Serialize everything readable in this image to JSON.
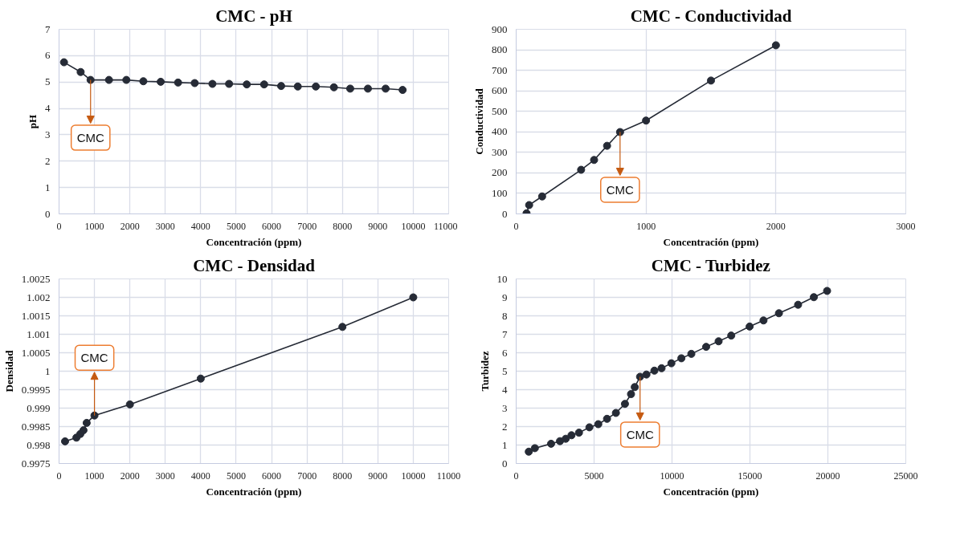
{
  "chart_data": [
    {
      "type": "line",
      "title": "CMC - pH",
      "xlabel": "Concentración (ppm)",
      "ylabel": "pH",
      "x": [
        140,
        610,
        890,
        1410,
        1900,
        2380,
        2870,
        3360,
        3830,
        4330,
        4800,
        5300,
        5790,
        6270,
        6740,
        7250,
        7760,
        8220,
        8720,
        9220,
        9700
      ],
      "series": [
        {
          "color": "#262b36",
          "values": [
            5.75,
            5.38,
            5.08,
            5.08,
            5.08,
            5.03,
            5.01,
            4.98,
            4.96,
            4.93,
            4.93,
            4.91,
            4.91,
            4.85,
            4.83,
            4.83,
            4.8,
            4.75,
            4.75,
            4.75,
            4.7
          ]
        }
      ],
      "xlim": [
        0,
        11000
      ],
      "xticks": [
        0,
        1000,
        2000,
        3000,
        4000,
        5000,
        6000,
        7000,
        8000,
        9000,
        10000,
        11000
      ],
      "ylim": [
        0,
        7
      ],
      "yticks": [
        0,
        1,
        2,
        3,
        4,
        5,
        6,
        7
      ],
      "grid": true,
      "marker": "circle",
      "line_style": "solid",
      "annotations": [
        {
          "text": "CMC",
          "x": 890,
          "y": 5.08
        }
      ]
    },
    {
      "type": "line",
      "title": "CMC - Conductividad",
      "xlabel": "Concentración (ppm)",
      "ylabel": "Conductividad",
      "x": [
        80,
        100,
        200,
        500,
        600,
        700,
        800,
        1000,
        1500,
        2000
      ],
      "series": [
        {
          "color": "#262b36",
          "values": [
            3,
            43,
            85,
            215,
            263,
            332,
            399,
            455,
            650,
            822
          ]
        }
      ],
      "xlim": [
        0,
        3000
      ],
      "xticks": [
        0,
        1000,
        2000,
        3000
      ],
      "ylim": [
        0,
        900
      ],
      "yticks": [
        0,
        100,
        200,
        300,
        400,
        500,
        600,
        700,
        800,
        900
      ],
      "grid": true,
      "marker": "circle",
      "line_style": "solid",
      "annotations": [
        {
          "text": "CMC",
          "x": 800,
          "y": 399
        }
      ]
    },
    {
      "type": "line",
      "title": "CMC - Densidad",
      "xlabel": "Concentración (ppm)",
      "ylabel": "Densidad",
      "x": [
        170,
        490,
        600,
        690,
        780,
        1000,
        2000,
        4000,
        8000,
        10000
      ],
      "series": [
        {
          "color": "#262b36",
          "values": [
            0.9981,
            0.9982,
            0.9983,
            0.9984,
            0.9986,
            0.9988,
            0.9991,
            0.9998,
            1.0012,
            1.002
          ]
        }
      ],
      "xlim": [
        0,
        11000
      ],
      "xticks": [
        0,
        1000,
        2000,
        3000,
        4000,
        5000,
        6000,
        7000,
        8000,
        9000,
        10000,
        11000
      ],
      "ylim": [
        0.9975,
        1.0025
      ],
      "yticks": [
        0.9975,
        0.998,
        0.9985,
        0.999,
        0.9995,
        1,
        1.0005,
        1.001,
        1.0015,
        1.002,
        1.0025
      ],
      "grid": true,
      "marker": "circle",
      "line_style": "solid",
      "annotations": [
        {
          "text": "CMC",
          "x": 1000,
          "y": 0.9988
        }
      ]
    },
    {
      "type": "line",
      "title": "CMC - Turbidez",
      "xlabel": "Concentración (ppm)",
      "ylabel": "Turbidez",
      "x": [
        810,
        1200,
        2240,
        2810,
        3180,
        3550,
        4030,
        4700,
        5270,
        5830,
        6400,
        6980,
        7370,
        7610,
        7950,
        8360,
        8870,
        9330,
        9960,
        10600,
        11240,
        12190,
        12990,
        13800,
        14980,
        15870,
        16860,
        18090,
        19100,
        19950
      ],
      "series": [
        {
          "color": "#262b36",
          "values": [
            0.64,
            0.83,
            1.07,
            1.21,
            1.34,
            1.53,
            1.67,
            1.96,
            2.13,
            2.42,
            2.74,
            3.23,
            3.76,
            4.14,
            4.7,
            4.82,
            5.03,
            5.16,
            5.43,
            5.7,
            5.94,
            6.32,
            6.62,
            6.93,
            7.42,
            7.75,
            8.14,
            8.6,
            9.01,
            9.35
          ]
        }
      ],
      "xlim": [
        0,
        25000
      ],
      "xticks": [
        0,
        5000,
        10000,
        15000,
        20000,
        25000
      ],
      "ylim": [
        0,
        10
      ],
      "yticks": [
        0,
        1,
        2,
        3,
        4,
        5,
        6,
        7,
        8,
        9,
        10
      ],
      "grid": true,
      "marker": "circle",
      "line_style": "solid",
      "annotations": [
        {
          "text": "CMC",
          "x": 7950,
          "y": 4.7
        }
      ]
    }
  ]
}
